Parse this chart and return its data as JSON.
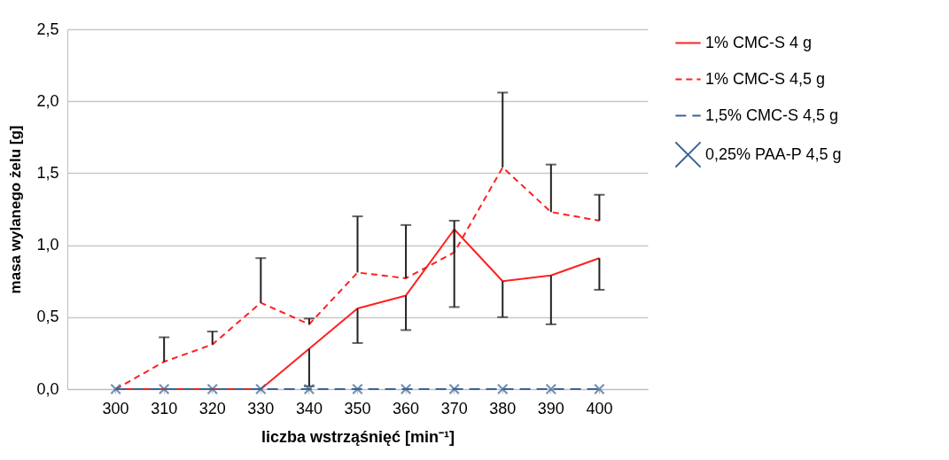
{
  "chart_data": {
    "type": "line",
    "xlabel": "liczba wstrząśnięć [min⁻¹]",
    "ylabel": "masa wylanego żelu [g]",
    "categories": [
      "300",
      "310",
      "320",
      "330",
      "340",
      "350",
      "360",
      "370",
      "380",
      "390",
      "400"
    ],
    "ylim": [
      0,
      2.5
    ],
    "yticks": [
      {
        "value": 0,
        "label": "0,0"
      },
      {
        "value": 0.5,
        "label": "0,5"
      },
      {
        "value": 1,
        "label": "1,0"
      },
      {
        "value": 1.5,
        "label": "1,5"
      },
      {
        "value": 2,
        "label": "2,0"
      },
      {
        "value": 2.5,
        "label": "2,5"
      }
    ],
    "grid": "y",
    "legend": "right",
    "series": [
      {
        "name": "1% CMC-S 4 g",
        "color": "#ff2020",
        "line_style": "solid",
        "values": [
          0,
          0,
          0,
          0,
          0.28,
          0.56,
          0.65,
          1.11,
          0.75,
          0.79,
          0.91
        ],
        "errors": [
          null,
          null,
          null,
          null,
          [
            0.02,
            0.28
          ],
          [
            0.32,
            0.56
          ],
          [
            0.41,
            0.65
          ],
          [
            0.57,
            1.11
          ],
          [
            0.5,
            0.75
          ],
          [
            0.45,
            0.79
          ],
          [
            0.69,
            0.91
          ]
        ]
      },
      {
        "name": "1% CMC-S 4,5 g",
        "color": "#ff2020",
        "line_style": "dashed",
        "values": [
          0,
          0.19,
          0.31,
          0.6,
          0.45,
          0.81,
          0.77,
          0.95,
          1.54,
          1.23,
          1.17
        ],
        "errors": [
          null,
          [
            0.19,
            0.36
          ],
          [
            0.31,
            0.4
          ],
          [
            0.6,
            0.91
          ],
          [
            0.45,
            0.49
          ],
          [
            0.81,
            1.2
          ],
          [
            0.77,
            1.14
          ],
          [
            0.95,
            1.17
          ],
          [
            1.54,
            2.06
          ],
          [
            1.23,
            1.56
          ],
          [
            1.17,
            1.35
          ]
        ]
      },
      {
        "name": "1,5% CMC-S 4,5 g",
        "color": "#3a6496",
        "line_style": "dashed",
        "values": [
          0,
          0,
          0,
          0,
          0,
          0,
          0,
          0,
          0,
          0,
          0
        ]
      },
      {
        "name": "0,25% PAA-P 4,5 g",
        "color": "#3a6496",
        "type": "scatter",
        "marker": "cross",
        "values": [
          0,
          0,
          0,
          0,
          0,
          0,
          0,
          0,
          0,
          0,
          0
        ]
      }
    ]
  }
}
